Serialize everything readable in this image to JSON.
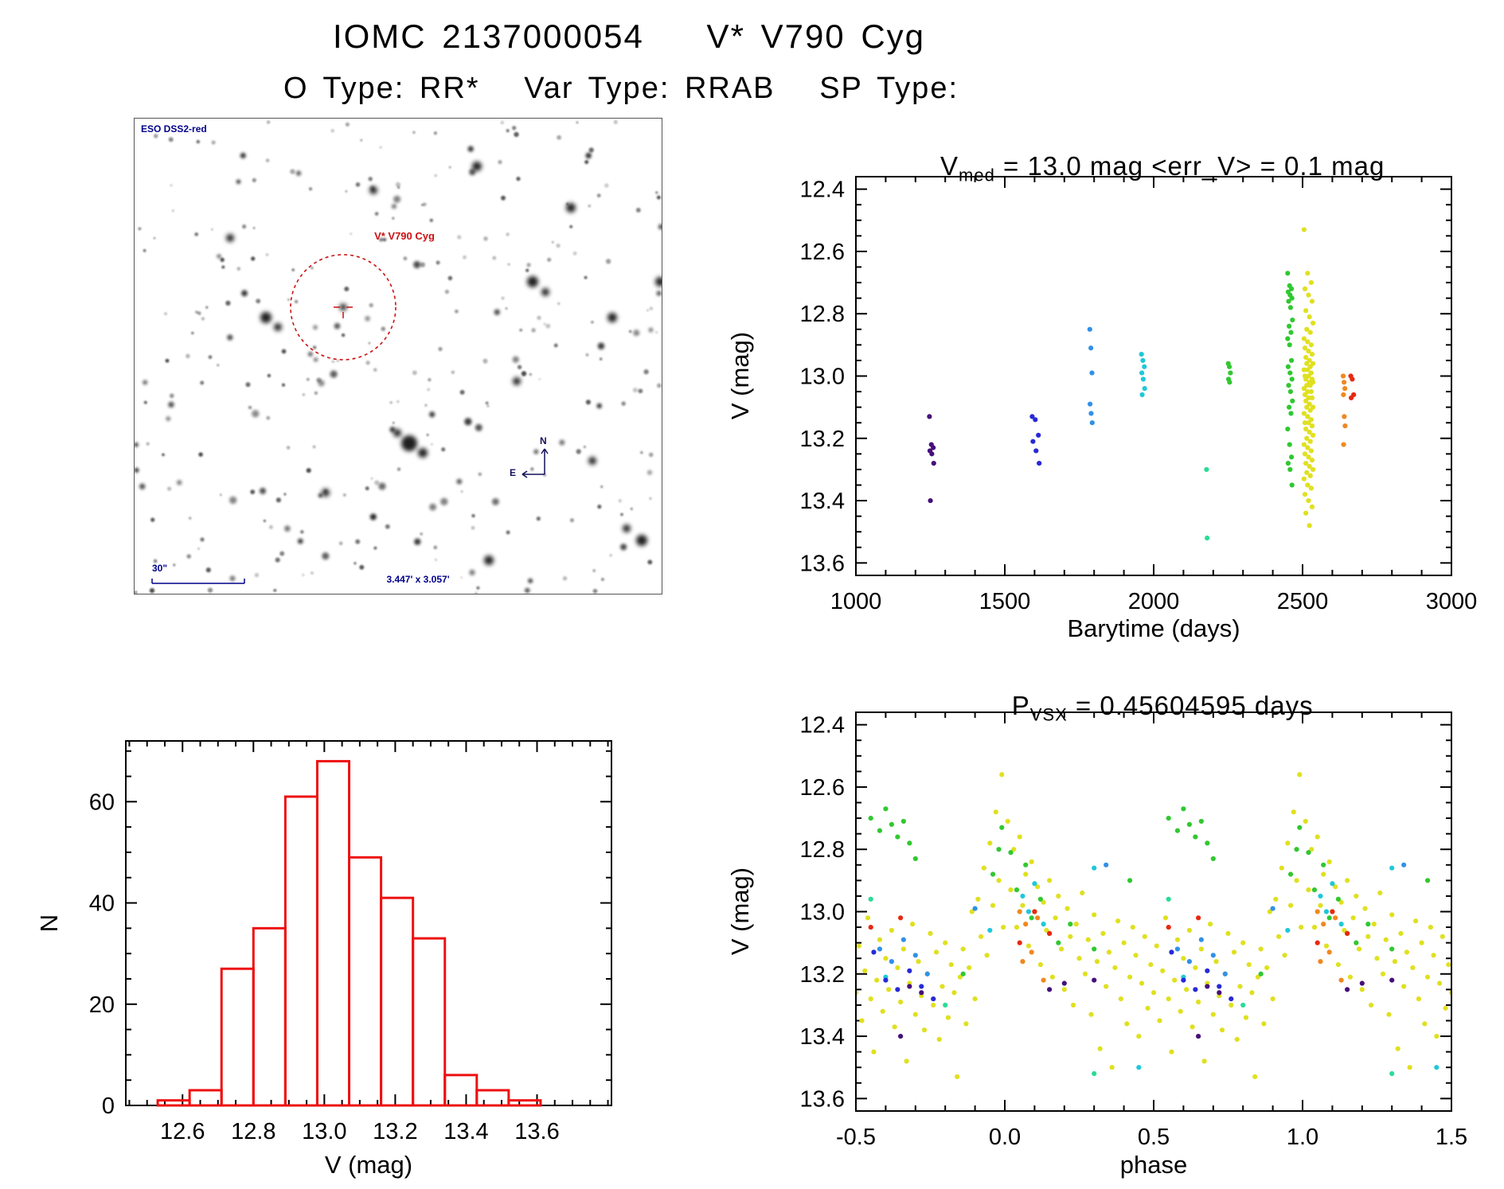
{
  "page": {
    "title": "IOMC 2137000054    V* V790 Cyg",
    "subtitle": "O Type: RR*   Var Type: RRAB   SP Type:"
  },
  "finder": {
    "survey_label": "ESO DSS2-red",
    "target_label": "V* V790 Cyg",
    "scale_label": "30\"",
    "fov_label": "3.447' x 3.057'",
    "compass_north": "N",
    "compass_east": "E",
    "annotation_blue": "#00008b",
    "marker_red": "#cc1111"
  },
  "chart_data": [
    {
      "id": "time_series",
      "type": "scatter",
      "title": {
        "base": "V",
        "sub": "med",
        "rest": " = 13.0 mag <err_V> = 0.1 mag"
      },
      "xlabel": "Barytime (days)",
      "ylabel": "V (mag)",
      "xlim": [
        1000,
        3000
      ],
      "ylim": [
        12.36,
        13.64
      ],
      "y_inverted_magnitude_axis": true,
      "xticks": [
        [
          1000,
          "1000"
        ],
        [
          1500,
          "1500"
        ],
        [
          2000,
          "2000"
        ],
        [
          2500,
          "2500"
        ],
        [
          3000,
          "3000"
        ]
      ],
      "yticks": [
        [
          12.4,
          "12.4"
        ],
        [
          12.6,
          "12.6"
        ],
        [
          12.8,
          "12.8"
        ],
        [
          13.0,
          "13.0"
        ],
        [
          13.2,
          "13.2"
        ],
        [
          13.4,
          "13.4"
        ],
        [
          13.6,
          "13.6"
        ]
      ],
      "xminor": 100,
      "yminor": 0.05,
      "grid": false,
      "epochs": [
        {
          "x": 1255,
          "spread": 16,
          "color": "#46107a",
          "mags": [
            13.13,
            13.22,
            13.23,
            13.24,
            13.25,
            13.28,
            13.4
          ]
        },
        {
          "x": 1605,
          "spread": 26,
          "color": "#2828d8",
          "mags": [
            13.13,
            13.14,
            13.19,
            13.21,
            13.24,
            13.28
          ]
        },
        {
          "x": 1790,
          "spread": 9,
          "color": "#3090e8",
          "mags": [
            12.85,
            12.91,
            12.99,
            13.09,
            13.12,
            13.15
          ]
        },
        {
          "x": 1965,
          "spread": 12,
          "color": "#20c8d8",
          "mags": [
            12.93,
            12.95,
            12.97,
            12.99,
            13.01,
            13.04,
            13.06
          ]
        },
        {
          "x": 2180,
          "spread": 5,
          "color": "#28dc96",
          "mags": [
            13.3,
            13.52
          ]
        },
        {
          "x": 2255,
          "spread": 9,
          "color": "#30c830",
          "mags": [
            12.96,
            12.97,
            12.99,
            13.01,
            13.02
          ]
        },
        {
          "x": 2458,
          "spread": 16,
          "color": "#30c830",
          "mags": [
            12.67,
            12.71,
            12.72,
            12.73,
            12.74,
            12.75,
            12.76,
            12.78,
            12.82,
            12.84,
            12.86,
            12.88,
            12.9,
            12.95,
            12.97,
            12.99,
            13.01,
            13.03,
            13.05,
            13.08,
            13.1,
            13.12,
            13.17,
            13.22,
            13.26,
            13.28,
            13.3,
            13.35
          ]
        },
        {
          "x": 2520,
          "spread": 30,
          "color": "#e0e020",
          "mags": [
            12.53,
            12.67,
            12.7,
            12.72,
            12.74,
            12.76,
            12.79,
            12.81,
            12.83,
            12.85,
            12.86,
            12.88,
            12.89,
            12.9,
            12.91,
            12.92,
            12.93,
            12.94,
            12.95,
            12.96,
            12.96,
            12.97,
            12.98,
            12.98,
            12.99,
            13.0,
            13.0,
            13.01,
            13.01,
            13.02,
            13.02,
            13.03,
            13.03,
            13.04,
            13.05,
            13.05,
            13.06,
            13.07,
            13.07,
            13.08,
            13.09,
            13.1,
            13.1,
            13.11,
            13.12,
            13.13,
            13.14,
            13.15,
            13.15,
            13.16,
            13.17,
            13.18,
            13.19,
            13.2,
            13.21,
            13.22,
            13.23,
            13.24,
            13.25,
            13.26,
            13.27,
            13.28,
            13.29,
            13.3,
            13.31,
            13.32,
            13.33,
            13.35,
            13.36,
            13.38,
            13.4,
            13.42,
            13.44,
            13.48
          ]
        },
        {
          "x": 2640,
          "spread": 7,
          "color": "#f08820",
          "mags": [
            13.0,
            13.02,
            13.04,
            13.06,
            13.13,
            13.16,
            13.22
          ]
        },
        {
          "x": 2668,
          "spread": 12,
          "color": "#e82810",
          "mags": [
            13.0,
            13.01,
            13.06,
            13.07
          ]
        }
      ]
    },
    {
      "id": "magnitude_histogram",
      "type": "histogram",
      "xlabel": "V (mag)",
      "ylabel": "N",
      "color": "#ee1111",
      "xlim": [
        12.44,
        13.81
      ],
      "ylim": [
        72,
        0
      ],
      "xticks": [
        [
          12.6,
          "12.6"
        ],
        [
          12.8,
          "12.8"
        ],
        [
          13.0,
          "13.0"
        ],
        [
          13.2,
          "13.2"
        ],
        [
          13.4,
          "13.4"
        ],
        [
          13.6,
          "13.6"
        ]
      ],
      "yticks": [
        [
          0,
          "0"
        ],
        [
          20,
          "20"
        ],
        [
          40,
          "40"
        ],
        [
          60,
          "60"
        ]
      ],
      "xminor": 0.05,
      "yminor": 5,
      "grid": false,
      "bin_start": 12.53,
      "bin_width": 0.09,
      "counts": [
        1,
        3,
        27,
        35,
        61,
        68,
        49,
        41,
        33,
        6,
        3,
        1
      ]
    },
    {
      "id": "phase_folded",
      "type": "scatter",
      "title": {
        "base": "P",
        "sub": "VSX",
        "rest": " = 0.45604595 days"
      },
      "xlabel": "phase",
      "ylabel": "V (mag)",
      "xlim": [
        -0.5,
        1.5
      ],
      "ylim": [
        12.36,
        13.64
      ],
      "y_inverted_magnitude_axis": true,
      "xticks": [
        [
          -0.5,
          "-0.5"
        ],
        [
          0.0,
          "0.0"
        ],
        [
          0.5,
          "0.5"
        ],
        [
          1.0,
          "1.0"
        ],
        [
          1.5,
          "1.5"
        ]
      ],
      "yticks": [
        [
          12.4,
          "12.4"
        ],
        [
          12.6,
          "12.6"
        ],
        [
          12.8,
          "12.8"
        ],
        [
          13.0,
          "13.0"
        ],
        [
          13.2,
          "13.2"
        ],
        [
          13.4,
          "13.4"
        ],
        [
          13.6,
          "13.6"
        ]
      ],
      "xminor": 0.1,
      "yminor": 0.05,
      "grid": false,
      "period_days": 0.45604595,
      "phase_fold_duplicate": true,
      "palette": [
        "#e0e020",
        "#30c830",
        "#20c8d8",
        "#3090e8",
        "#2828d8",
        "#46107a",
        "#e82810",
        "#f08820",
        "#28dc96"
      ],
      "points": [
        [
          0.01,
          12.71,
          0
        ],
        [
          0.02,
          12.93,
          0
        ],
        [
          0.03,
          12.8,
          0
        ],
        [
          0.04,
          13.05,
          0
        ],
        [
          0.05,
          12.76,
          0
        ],
        [
          0.06,
          12.98,
          0
        ],
        [
          0.07,
          12.88,
          0
        ],
        [
          0.08,
          13.11,
          0
        ],
        [
          0.09,
          12.84,
          0
        ],
        [
          0.1,
          13.0,
          0
        ],
        [
          0.11,
          12.92,
          0
        ],
        [
          0.12,
          13.17,
          0
        ],
        [
          0.13,
          12.97,
          0
        ],
        [
          0.14,
          13.06,
          0
        ],
        [
          0.15,
          12.9,
          0
        ],
        [
          0.16,
          13.21,
          0
        ],
        [
          0.17,
          13.02,
          0
        ],
        [
          0.18,
          12.95,
          0
        ],
        [
          0.19,
          13.12,
          0
        ],
        [
          0.2,
          13.25,
          0
        ],
        [
          0.21,
          12.99,
          0
        ],
        [
          0.22,
          13.08,
          0
        ],
        [
          0.23,
          13.3,
          0
        ],
        [
          0.24,
          13.04,
          0
        ],
        [
          0.25,
          13.15,
          0
        ],
        [
          0.26,
          12.94,
          0
        ],
        [
          0.27,
          13.2,
          0
        ],
        [
          0.28,
          13.09,
          0
        ],
        [
          0.29,
          13.33,
          0
        ],
        [
          0.3,
          13.01,
          0
        ],
        [
          0.31,
          13.16,
          0
        ],
        [
          0.32,
          13.44,
          0
        ],
        [
          0.33,
          13.07,
          0
        ],
        [
          0.34,
          13.24,
          0
        ],
        [
          0.35,
          13.13,
          0
        ],
        [
          0.36,
          13.5,
          0
        ],
        [
          0.37,
          13.18,
          0
        ],
        [
          0.38,
          13.03,
          0
        ],
        [
          0.39,
          13.28,
          0
        ],
        [
          0.4,
          13.1,
          0
        ],
        [
          0.41,
          13.36,
          0
        ],
        [
          0.42,
          13.21,
          0
        ],
        [
          0.43,
          13.05,
          0
        ],
        [
          0.44,
          13.14,
          0
        ],
        [
          0.45,
          13.4,
          0
        ],
        [
          0.46,
          13.23,
          0
        ],
        [
          0.47,
          13.08,
          0
        ],
        [
          0.48,
          13.31,
          0
        ],
        [
          0.49,
          13.17,
          0
        ],
        [
          0.5,
          13.26,
          0
        ],
        [
          0.51,
          13.11,
          0
        ],
        [
          0.52,
          13.35,
          0
        ],
        [
          0.53,
          13.19,
          0
        ],
        [
          0.54,
          13.02,
          0
        ],
        [
          0.55,
          13.28,
          0
        ],
        [
          0.56,
          13.45,
          0
        ],
        [
          0.57,
          13.22,
          0
        ],
        [
          0.58,
          13.09,
          0
        ],
        [
          0.59,
          13.32,
          0
        ],
        [
          0.6,
          13.15,
          0
        ],
        [
          0.61,
          13.25,
          0
        ],
        [
          0.62,
          13.06,
          0
        ],
        [
          0.63,
          13.37,
          0
        ],
        [
          0.64,
          13.18,
          0
        ],
        [
          0.65,
          13.29,
          0
        ],
        [
          0.66,
          13.12,
          0
        ],
        [
          0.67,
          13.48,
          0
        ],
        [
          0.68,
          13.23,
          0
        ],
        [
          0.69,
          13.04,
          0
        ],
        [
          0.7,
          13.33,
          0
        ],
        [
          0.71,
          13.16,
          0
        ],
        [
          0.72,
          13.27,
          0
        ],
        [
          0.73,
          13.38,
          0
        ],
        [
          0.74,
          13.2,
          0
        ],
        [
          0.75,
          13.07,
          0
        ],
        [
          0.76,
          13.3,
          0
        ],
        [
          0.77,
          13.13,
          0
        ],
        [
          0.78,
          13.41,
          0
        ],
        [
          0.79,
          13.24,
          0
        ],
        [
          0.8,
          13.1,
          0
        ],
        [
          0.81,
          13.34,
          0
        ],
        [
          0.82,
          13.17,
          0
        ],
        [
          0.83,
          13.26,
          0
        ],
        [
          0.84,
          13.53,
          0
        ],
        [
          0.85,
          13.21,
          0
        ],
        [
          0.86,
          13.12,
          0
        ],
        [
          0.87,
          13.36,
          0
        ],
        [
          0.88,
          13.18,
          0
        ],
        [
          0.89,
          13.0,
          0
        ],
        [
          0.9,
          13.28,
          0
        ],
        [
          0.91,
          12.96,
          0
        ],
        [
          0.92,
          13.08,
          0
        ],
        [
          0.93,
          12.86,
          0
        ],
        [
          0.94,
          13.14,
          0
        ],
        [
          0.95,
          12.78,
          0
        ],
        [
          0.96,
          12.98,
          0
        ],
        [
          0.97,
          12.68,
          0
        ],
        [
          0.98,
          12.9,
          0
        ],
        [
          0.99,
          12.56,
          0
        ],
        [
          0.995,
          13.05,
          0
        ],
        [
          0.04,
          12.93,
          1
        ],
        [
          0.07,
          12.85,
          1
        ],
        [
          0.09,
          13.02,
          1
        ],
        [
          0.12,
          12.96,
          1
        ],
        [
          0.15,
          13.07,
          1
        ],
        [
          0.55,
          12.7,
          1
        ],
        [
          0.58,
          12.74,
          1
        ],
        [
          0.6,
          12.67,
          1
        ],
        [
          0.62,
          12.72,
          1
        ],
        [
          0.64,
          12.76,
          1
        ],
        [
          0.66,
          12.71,
          1
        ],
        [
          0.68,
          12.78,
          1
        ],
        [
          0.96,
          12.88,
          1
        ],
        [
          0.98,
          12.8,
          1
        ],
        [
          0.99,
          12.73,
          1
        ],
        [
          0.02,
          12.81,
          1
        ],
        [
          0.18,
          13.1,
          1
        ],
        [
          0.22,
          13.04,
          1
        ],
        [
          0.3,
          13.12,
          1
        ],
        [
          0.42,
          12.9,
          1
        ],
        [
          0.7,
          12.83,
          1
        ],
        [
          0.86,
          13.2,
          1
        ],
        [
          0.06,
          12.95,
          2
        ],
        [
          0.08,
          13.0,
          2
        ],
        [
          0.1,
          12.91,
          2
        ],
        [
          0.13,
          13.04,
          2
        ],
        [
          0.45,
          13.5,
          2
        ],
        [
          0.6,
          13.21,
          2
        ],
        [
          0.3,
          12.86,
          2
        ],
        [
          0.95,
          13.06,
          2
        ],
        [
          0.58,
          13.12,
          3
        ],
        [
          0.62,
          13.16,
          3
        ],
        [
          0.66,
          13.09,
          3
        ],
        [
          0.7,
          13.14,
          3
        ],
        [
          0.74,
          13.2,
          3
        ],
        [
          0.34,
          12.85,
          3
        ],
        [
          0.9,
          12.99,
          3
        ],
        [
          0.6,
          13.22,
          4
        ],
        [
          0.64,
          13.25,
          4
        ],
        [
          0.68,
          13.19,
          4
        ],
        [
          0.72,
          13.24,
          4
        ],
        [
          0.76,
          13.28,
          4
        ],
        [
          0.56,
          13.13,
          4
        ],
        [
          0.15,
          13.25,
          5
        ],
        [
          0.3,
          13.22,
          5
        ],
        [
          0.65,
          13.4,
          5
        ],
        [
          0.68,
          13.24,
          5
        ],
        [
          0.72,
          13.26,
          5
        ],
        [
          0.2,
          13.23,
          5
        ],
        [
          0.05,
          13.1,
          6
        ],
        [
          0.1,
          13.0,
          6
        ],
        [
          0.55,
          13.05,
          6
        ],
        [
          0.65,
          13.02,
          6
        ],
        [
          0.15,
          13.07,
          6
        ],
        [
          0.05,
          13.0,
          7
        ],
        [
          0.07,
          13.04,
          7
        ],
        [
          0.09,
          13.13,
          7
        ],
        [
          0.11,
          13.02,
          7
        ],
        [
          0.13,
          13.22,
          7
        ],
        [
          0.06,
          13.16,
          7
        ],
        [
          0.8,
          13.3,
          8
        ],
        [
          0.3,
          13.52,
          8
        ],
        [
          0.55,
          12.96,
          8
        ]
      ]
    }
  ]
}
